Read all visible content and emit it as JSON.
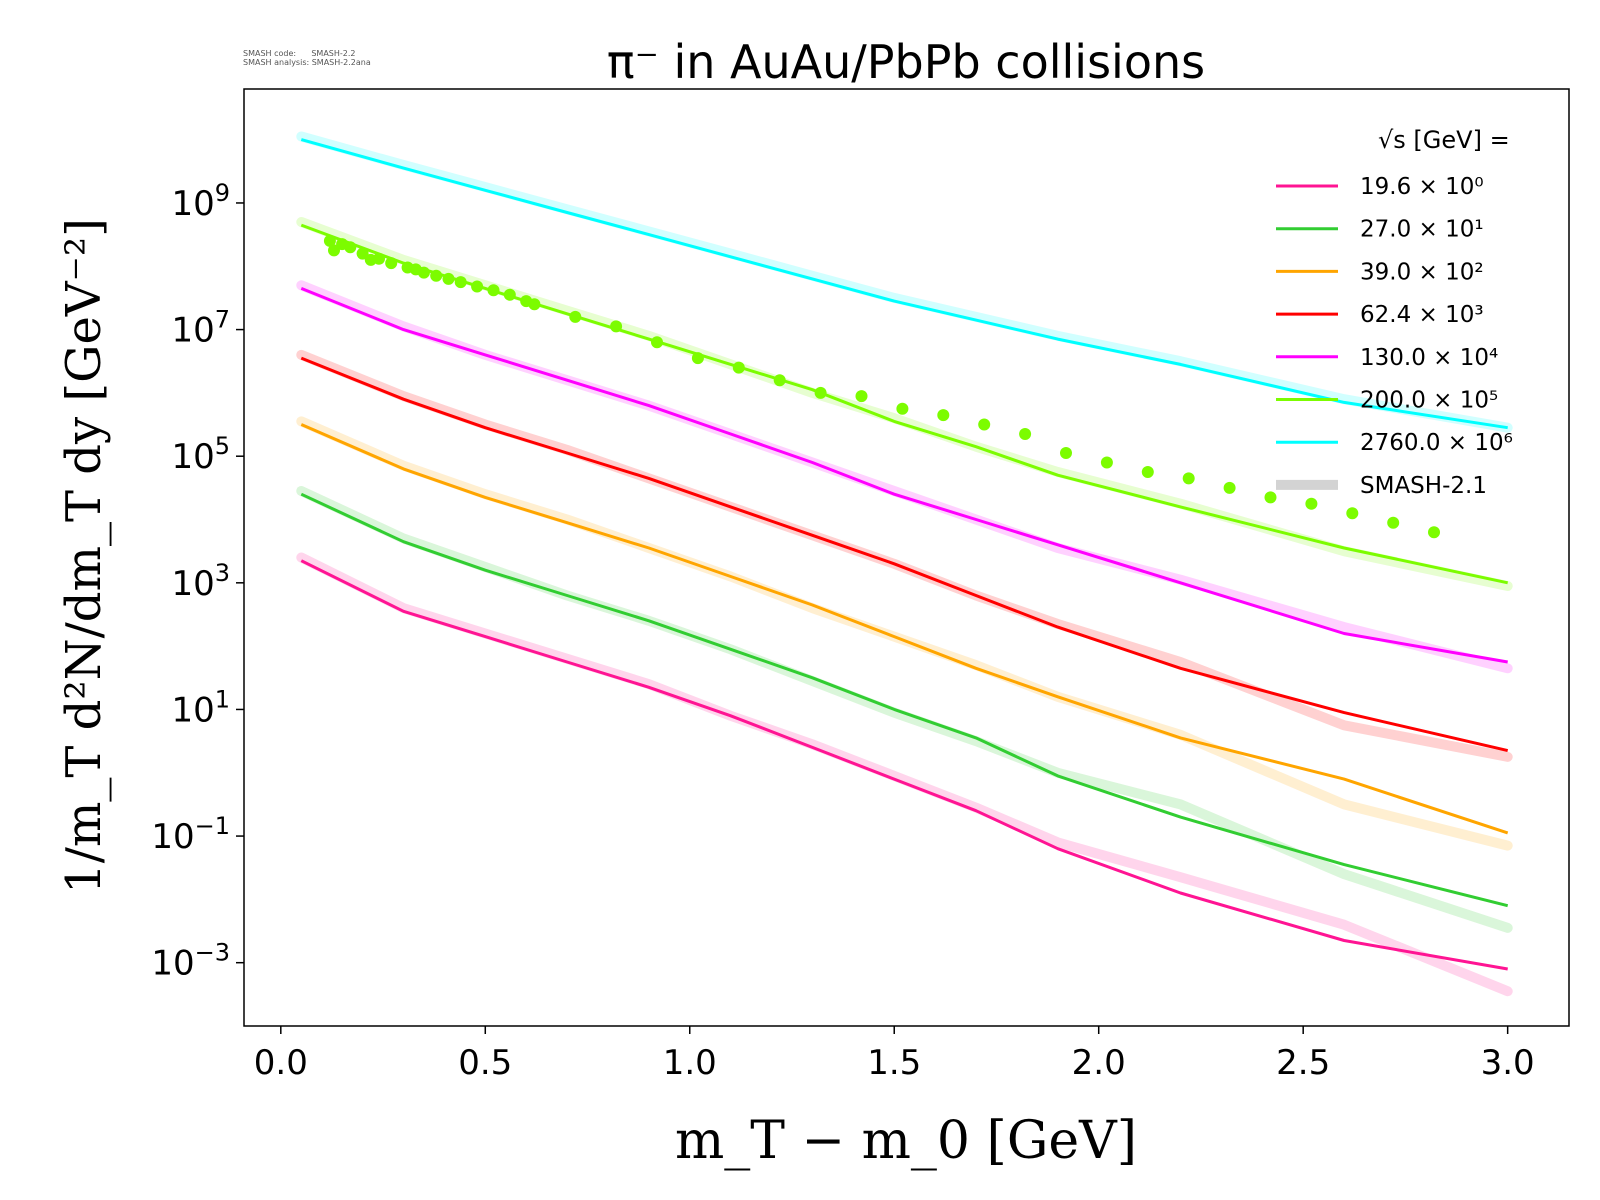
{
  "info": {
    "line1": "SMASH code:      SMASH-2.2",
    "line2": "SMASH analysis: SMASH-2.2ana"
  },
  "chart_data": {
    "type": "line",
    "title": "π⁻ in AuAu/PbPb collisions",
    "xlabel": "m_T − m_0 [GeV]",
    "ylabel": "1/m_T d²N/dm_T dy [GeV⁻²]",
    "yscale": "log",
    "xlim": [
      -0.09,
      3.15
    ],
    "ylim_exp": [
      -4.0,
      10.8
    ],
    "x_ticks": [
      "0.0",
      "0.5",
      "1.0",
      "1.5",
      "2.0",
      "2.5",
      "3.0"
    ],
    "x_tick_values": [
      0.0,
      0.5,
      1.0,
      1.5,
      2.0,
      2.5,
      3.0
    ],
    "y_ticks": [
      {
        "exp": -3,
        "base": "10",
        "sup": "−3"
      },
      {
        "exp": -1,
        "base": "10",
        "sup": "−1"
      },
      {
        "exp": 1,
        "base": "10",
        "sup": "1"
      },
      {
        "exp": 3,
        "base": "10",
        "sup": "3"
      },
      {
        "exp": 5,
        "base": "10",
        "sup": "5"
      },
      {
        "exp": 7,
        "base": "10",
        "sup": "7"
      },
      {
        "exp": 9,
        "base": "10",
        "sup": "9"
      }
    ],
    "grid": false,
    "legend_position": "top-right",
    "legend_title": "√s  [GeV] =",
    "x": [
      0.05,
      0.3,
      0.5,
      0.7,
      0.9,
      1.1,
      1.3,
      1.5,
      1.7,
      1.9,
      2.2,
      2.6,
      3.0
    ],
    "series": [
      {
        "name": "19.6 × 10⁰",
        "color": "#ff1493",
        "log10_y": [
          3.35,
          2.55,
          2.15,
          1.75,
          1.35,
          0.9,
          0.4,
          -0.1,
          -0.6,
          -1.2,
          -1.9,
          -2.65,
          -3.1
        ],
        "ref_log10_y": [
          3.4,
          2.6,
          2.2,
          1.8,
          1.4,
          0.9,
          0.45,
          -0.05,
          -0.55,
          -1.1,
          -1.65,
          -2.4,
          -3.45
        ]
      },
      {
        "name": "27.0 × 10¹",
        "color": "#32cd32",
        "log10_y": [
          4.4,
          3.65,
          3.2,
          2.8,
          2.4,
          1.95,
          1.5,
          1.0,
          0.55,
          -0.05,
          -0.7,
          -1.45,
          -2.1
        ],
        "ref_log10_y": [
          4.45,
          3.7,
          3.25,
          2.8,
          2.4,
          1.95,
          1.45,
          0.95,
          0.5,
          0.0,
          -0.5,
          -1.6,
          -2.45
        ]
      },
      {
        "name": "39.0 × 10²",
        "color": "#ffa500",
        "log10_y": [
          5.5,
          4.8,
          4.35,
          3.95,
          3.55,
          3.1,
          2.65,
          2.15,
          1.65,
          1.2,
          0.55,
          -0.1,
          -0.95
        ],
        "ref_log10_y": [
          5.55,
          4.85,
          4.4,
          4.0,
          3.55,
          3.1,
          2.6,
          2.15,
          1.7,
          1.2,
          0.6,
          -0.5,
          -1.15
        ]
      },
      {
        "name": "62.4 × 10³",
        "color": "#ff0000",
        "log10_y": [
          6.55,
          5.9,
          5.45,
          5.05,
          4.65,
          4.2,
          3.75,
          3.3,
          2.8,
          2.3,
          1.65,
          0.95,
          0.35
        ],
        "ref_log10_y": [
          6.6,
          5.95,
          5.5,
          5.1,
          4.65,
          4.2,
          3.75,
          3.3,
          2.8,
          2.35,
          1.75,
          0.75,
          0.25
        ]
      },
      {
        "name": "130.0 × 10⁴",
        "color": "#ff00ff",
        "log10_y": [
          7.65,
          7.0,
          6.6,
          6.2,
          5.8,
          5.35,
          4.9,
          4.4,
          4.0,
          3.6,
          3.0,
          2.2,
          1.75
        ],
        "ref_log10_y": [
          7.7,
          7.05,
          6.6,
          6.2,
          5.8,
          5.35,
          4.9,
          4.45,
          4.0,
          3.55,
          3.05,
          2.3,
          1.65
        ]
      },
      {
        "name": "200.0 × 10⁵",
        "color": "#7cfc00",
        "log10_y": [
          8.65,
          8.05,
          7.65,
          7.25,
          6.85,
          6.45,
          6.05,
          5.55,
          5.15,
          4.7,
          4.2,
          3.55,
          3.0
        ],
        "ref_log10_y": [
          8.7,
          8.1,
          7.7,
          7.3,
          6.9,
          6.45,
          6.0,
          5.6,
          5.15,
          4.75,
          4.25,
          3.5,
          2.95
        ]
      },
      {
        "name": "2760.0 × 10⁶",
        "color": "#00ffff",
        "log10_y": [
          10.0,
          9.55,
          9.2,
          8.85,
          8.5,
          8.15,
          7.8,
          7.45,
          7.15,
          6.85,
          6.45,
          5.85,
          5.45
        ],
        "ref_log10_y": [
          10.05,
          9.6,
          9.25,
          8.9,
          8.55,
          8.2,
          7.85,
          7.5,
          7.2,
          6.9,
          6.5,
          5.9,
          5.45
        ]
      }
    ],
    "reference_label": "SMASH-2.1",
    "reference_color": "#d3d3d3",
    "scatter": {
      "color": "#7cfc00",
      "x": [
        0.12,
        0.13,
        0.15,
        0.17,
        0.2,
        0.22,
        0.24,
        0.27,
        0.31,
        0.33,
        0.35,
        0.38,
        0.41,
        0.44,
        0.48,
        0.52,
        0.56,
        0.6,
        0.62,
        0.72,
        0.82,
        0.92,
        1.02,
        1.12,
        1.22,
        1.32,
        1.42,
        1.52,
        1.62,
        1.72,
        1.82,
        1.92,
        2.02,
        2.12,
        2.22,
        2.32,
        2.42,
        2.52,
        2.62,
        2.72,
        2.82
      ],
      "log10_y": [
        8.4,
        8.25,
        8.35,
        8.3,
        8.2,
        8.1,
        8.12,
        8.05,
        7.98,
        7.95,
        7.9,
        7.85,
        7.8,
        7.75,
        7.68,
        7.62,
        7.55,
        7.45,
        7.4,
        7.2,
        7.05,
        6.8,
        6.55,
        6.4,
        6.2,
        6.0,
        5.95,
        5.75,
        5.65,
        5.5,
        5.35,
        5.05,
        4.9,
        4.75,
        4.65,
        4.5,
        4.35,
        4.25,
        4.1,
        3.95,
        3.8
      ]
    }
  }
}
